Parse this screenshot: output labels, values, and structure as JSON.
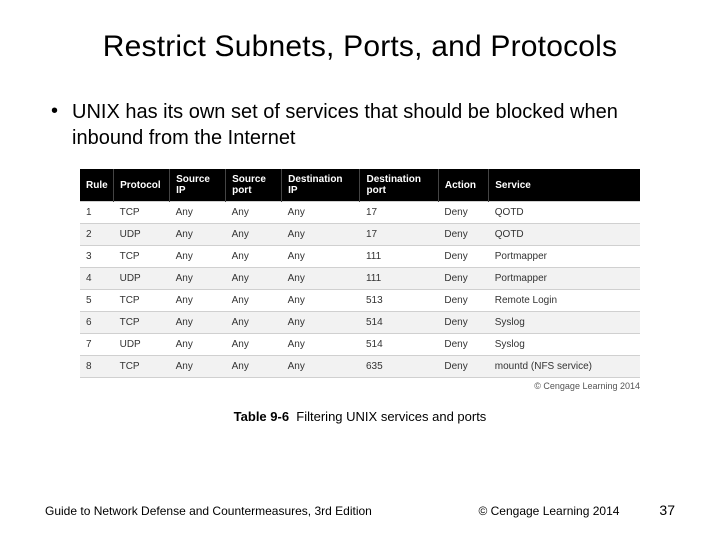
{
  "title": "Restrict Subnets, Ports, and Protocols",
  "bullet": "UNIX has its own set of services that should be blocked when inbound from the Internet",
  "table": {
    "columns": [
      "Rule",
      "Protocol",
      "Source IP",
      "Source port",
      "Destination IP",
      "Destination port",
      "Action",
      "Service"
    ],
    "col_widths": [
      "6%",
      "10%",
      "10%",
      "10%",
      "14%",
      "14%",
      "9%",
      "27%"
    ],
    "header_bg": "#000000",
    "header_color": "#ffffff",
    "row_alt_bg": "#f2f2f2",
    "border_color": "#d0d0d0",
    "font_size": 10,
    "rows": [
      [
        "1",
        "TCP",
        "Any",
        "Any",
        "Any",
        "17",
        "Deny",
        "QOTD"
      ],
      [
        "2",
        "UDP",
        "Any",
        "Any",
        "Any",
        "17",
        "Deny",
        "QOTD"
      ],
      [
        "3",
        "TCP",
        "Any",
        "Any",
        "Any",
        "111",
        "Deny",
        "Portmapper"
      ],
      [
        "4",
        "UDP",
        "Any",
        "Any",
        "Any",
        "111",
        "Deny",
        "Portmapper"
      ],
      [
        "5",
        "TCP",
        "Any",
        "Any",
        "Any",
        "513",
        "Deny",
        "Remote Login"
      ],
      [
        "6",
        "TCP",
        "Any",
        "Any",
        "Any",
        "514",
        "Deny",
        "Syslog"
      ],
      [
        "7",
        "UDP",
        "Any",
        "Any",
        "Any",
        "514",
        "Deny",
        "Syslog"
      ],
      [
        "8",
        "TCP",
        "Any",
        "Any",
        "Any",
        "635",
        "Deny",
        "mountd (NFS service)"
      ]
    ]
  },
  "table_copyright": "© Cengage Learning 2014",
  "caption_label": "Table 9-6",
  "caption_text": "Filtering UNIX services and ports",
  "footer": {
    "reference": "Guide to Network Defense and Countermeasures, 3rd Edition",
    "copyright": "© Cengage Learning  2014",
    "page": "37"
  }
}
